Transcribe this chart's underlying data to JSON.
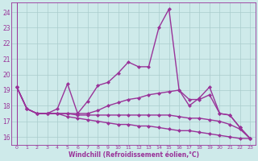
{
  "background_color": "#ceeaea",
  "line_color": "#993399",
  "grid_color": "#aacccc",
  "xlabel": "Windchill (Refroidissement éolien,°C)",
  "xlabel_color": "#993399",
  "yticks": [
    16,
    17,
    18,
    19,
    20,
    21,
    22,
    23,
    24
  ],
  "xticks": [
    0,
    1,
    2,
    3,
    4,
    5,
    6,
    7,
    8,
    9,
    10,
    11,
    12,
    13,
    14,
    15,
    16,
    17,
    18,
    19,
    20,
    21,
    22,
    23
  ],
  "xlim": [
    -0.5,
    23.5
  ],
  "ylim": [
    15.5,
    24.6
  ],
  "lines": [
    {
      "x": [
        0,
        1,
        2,
        3,
        4,
        5,
        6,
        7,
        8,
        9,
        10,
        11,
        12,
        13,
        14,
        15,
        16,
        17,
        18,
        19,
        20,
        21,
        22,
        23
      ],
      "y": [
        19.2,
        17.8,
        17.5,
        17.5,
        17.8,
        19.4,
        17.5,
        18.3,
        19.3,
        19.5,
        20.1,
        20.8,
        20.5,
        20.5,
        23.0,
        24.2,
        19.0,
        18.0,
        18.5,
        19.2,
        17.5,
        17.4,
        16.6,
        15.9
      ],
      "marker": "D",
      "markersize": 2.0,
      "linewidth": 1.0
    },
    {
      "x": [
        0,
        1,
        2,
        3,
        4,
        5,
        6,
        7,
        8,
        9,
        10,
        11,
        12,
        13,
        14,
        15,
        16,
        17,
        18,
        19,
        20,
        21,
        22,
        23
      ],
      "y": [
        19.2,
        17.8,
        17.5,
        17.5,
        17.5,
        17.5,
        17.5,
        17.5,
        17.7,
        18.0,
        18.2,
        18.4,
        18.5,
        18.7,
        18.8,
        18.9,
        19.0,
        18.4,
        18.4,
        18.7,
        17.5,
        17.4,
        16.6,
        15.9
      ],
      "marker": "D",
      "markersize": 2.0,
      "linewidth": 1.0
    },
    {
      "x": [
        0,
        1,
        2,
        3,
        4,
        5,
        6,
        7,
        8,
        9,
        10,
        11,
        12,
        13,
        14,
        15,
        16,
        17,
        18,
        19,
        20,
        21,
        22,
        23
      ],
      "y": [
        19.2,
        17.8,
        17.5,
        17.5,
        17.5,
        17.5,
        17.4,
        17.4,
        17.4,
        17.4,
        17.4,
        17.4,
        17.4,
        17.4,
        17.4,
        17.4,
        17.3,
        17.2,
        17.2,
        17.1,
        17.0,
        16.8,
        16.5,
        15.9
      ],
      "marker": "D",
      "markersize": 2.0,
      "linewidth": 1.0
    },
    {
      "x": [
        0,
        1,
        2,
        3,
        4,
        5,
        6,
        7,
        8,
        9,
        10,
        11,
        12,
        13,
        14,
        15,
        16,
        17,
        18,
        19,
        20,
        21,
        22,
        23
      ],
      "y": [
        19.2,
        17.8,
        17.5,
        17.5,
        17.5,
        17.3,
        17.2,
        17.1,
        17.0,
        16.9,
        16.8,
        16.8,
        16.7,
        16.7,
        16.6,
        16.5,
        16.4,
        16.4,
        16.3,
        16.2,
        16.1,
        16.0,
        15.9,
        15.9
      ],
      "marker": "D",
      "markersize": 2.0,
      "linewidth": 1.0
    }
  ]
}
